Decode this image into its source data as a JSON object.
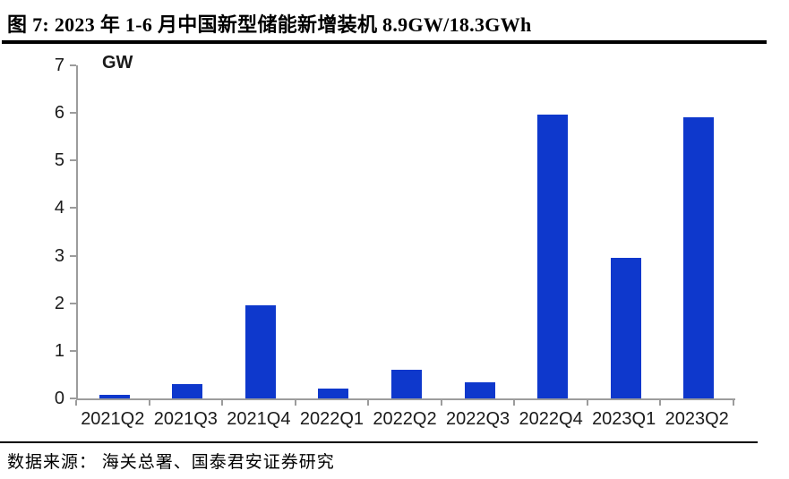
{
  "figure": {
    "title": "图 7:  2023 年 1-6 月中国新型储能新增装机 8.9GW/18.3GWh",
    "source_note": "数据来源： 海关总署、国泰君安证券研究"
  },
  "chart_data": {
    "type": "bar",
    "title": "2023 年 1-6 月中国新型储能新增装机 8.9GW/18.3GWh",
    "unit_label": "GW",
    "categories": [
      "2021Q2",
      "2021Q3",
      "2021Q4",
      "2022Q1",
      "2022Q2",
      "2022Q3",
      "2022Q4",
      "2023Q1",
      "2023Q2"
    ],
    "values": [
      0.08,
      0.3,
      1.95,
      0.2,
      0.6,
      0.33,
      5.97,
      2.95,
      5.9
    ],
    "xlabel": "",
    "ylabel": "GW",
    "ylim": [
      0,
      7
    ],
    "yticks": [
      0,
      1,
      2,
      3,
      4,
      5,
      6,
      7
    ],
    "grid": false,
    "legend": false,
    "bar_color": "#0E38CC",
    "axis_color": "#9C9C9C",
    "text_color": "#1A1A1A"
  }
}
